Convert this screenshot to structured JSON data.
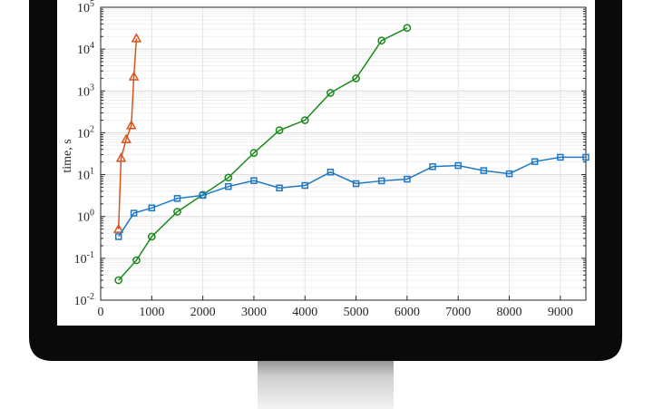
{
  "chart_data": {
    "type": "line",
    "ylabel": "time, s",
    "xlabel": "",
    "title": "",
    "yscale": "log",
    "xlim": [
      0,
      9500
    ],
    "ylim": [
      0.01,
      100000
    ],
    "grid": true,
    "x_ticks": [
      "0",
      "1000",
      "2000",
      "3000",
      "4000",
      "5000",
      "6000",
      "7000",
      "8000",
      "9000"
    ],
    "y_ticks": [
      {
        "base": "10",
        "exp": "-2"
      },
      {
        "base": "10",
        "exp": "-1"
      },
      {
        "base": "10",
        "exp": "0"
      },
      {
        "base": "10",
        "exp": "1"
      },
      {
        "base": "10",
        "exp": "2"
      },
      {
        "base": "10",
        "exp": "3"
      },
      {
        "base": "10",
        "exp": "4"
      },
      {
        "base": "10",
        "exp": "5"
      }
    ],
    "series": [
      {
        "marker": "triangle",
        "color": "#d95319",
        "x": [
          350,
          400,
          500,
          600,
          650,
          700
        ],
        "y": [
          0.5,
          25,
          70,
          150,
          2200,
          18000
        ]
      },
      {
        "marker": "circle",
        "color": "#1a8a1a",
        "x": [
          350,
          700,
          1000,
          1500,
          2000,
          2500,
          3000,
          3500,
          4000,
          4500,
          5000,
          5500,
          6000
        ],
        "y": [
          0.03,
          0.09,
          0.33,
          1.3,
          3.3,
          8.5,
          33,
          115,
          200,
          900,
          2000,
          16000,
          32000
        ]
      },
      {
        "marker": "square",
        "color": "#1f77c4",
        "x": [
          350,
          650,
          1000,
          1500,
          2000,
          2500,
          3000,
          3500,
          4000,
          4500,
          5000,
          5500,
          6000,
          6500,
          7000,
          7500,
          8000,
          8500,
          9000,
          9500
        ],
        "y": [
          0.33,
          1.2,
          1.6,
          2.7,
          3.2,
          5.2,
          7.2,
          4.8,
          5.5,
          11.5,
          6.1,
          7.1,
          7.8,
          15.5,
          16.5,
          12.5,
          10.5,
          20.5,
          26,
          26
        ]
      }
    ]
  }
}
